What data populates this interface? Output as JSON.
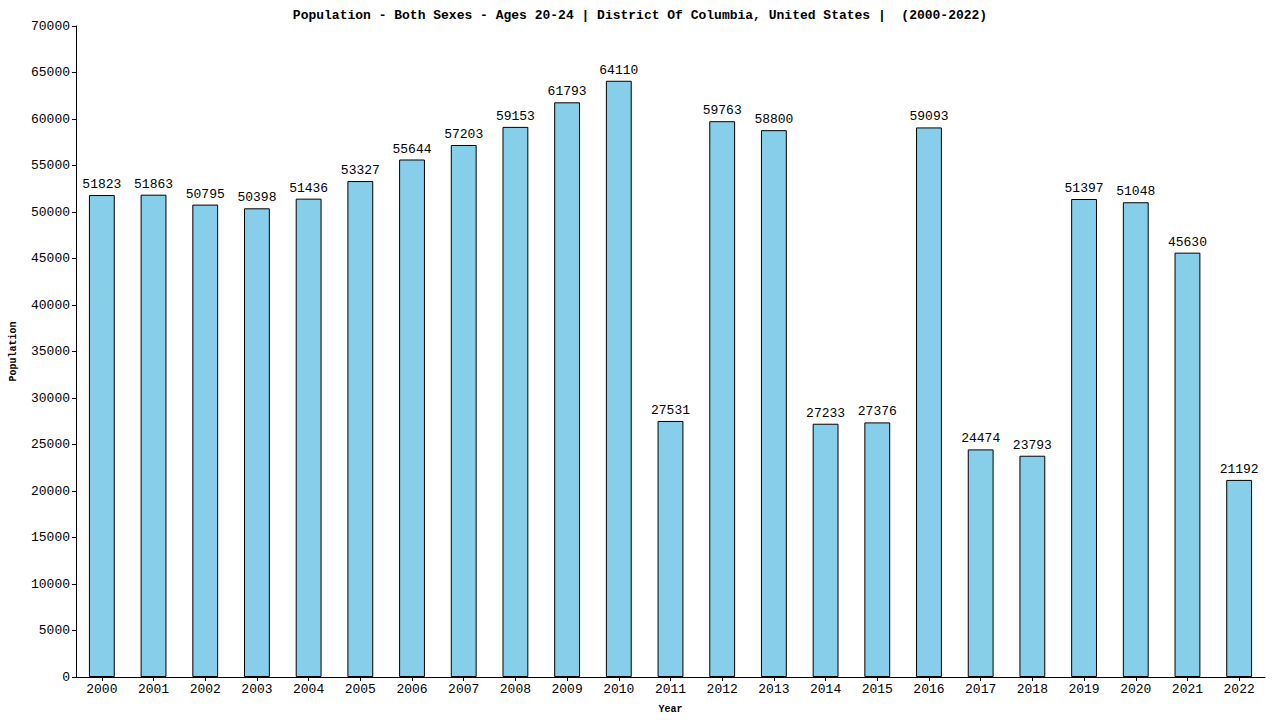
{
  "chart_data": {
    "type": "bar",
    "title": "Population - Both Sexes - Ages 20-24 | District Of Columbia, United States |  (2000-2022)",
    "x_label": "Year",
    "y_label": "Population",
    "categories": [
      "2000",
      "2001",
      "2002",
      "2003",
      "2004",
      "2005",
      "2006",
      "2007",
      "2008",
      "2009",
      "2010",
      "2011",
      "2012",
      "2013",
      "2014",
      "2015",
      "2016",
      "2017",
      "2018",
      "2019",
      "2020",
      "2021",
      "2022"
    ],
    "values": [
      51823,
      51863,
      50795,
      50398,
      51436,
      53327,
      55644,
      57203,
      59153,
      61793,
      64110,
      27531,
      59763,
      58800,
      27233,
      27376,
      59093,
      24474,
      23793,
      51397,
      51048,
      45630,
      21192
    ],
    "color": "#87ceeb",
    "ylim": [
      0,
      70000
    ],
    "yticks": [
      0,
      5000,
      10000,
      15000,
      20000,
      25000,
      30000,
      35000,
      40000,
      45000,
      50000,
      55000,
      60000,
      65000,
      70000
    ],
    "grid": false,
    "data_labels": true
  }
}
